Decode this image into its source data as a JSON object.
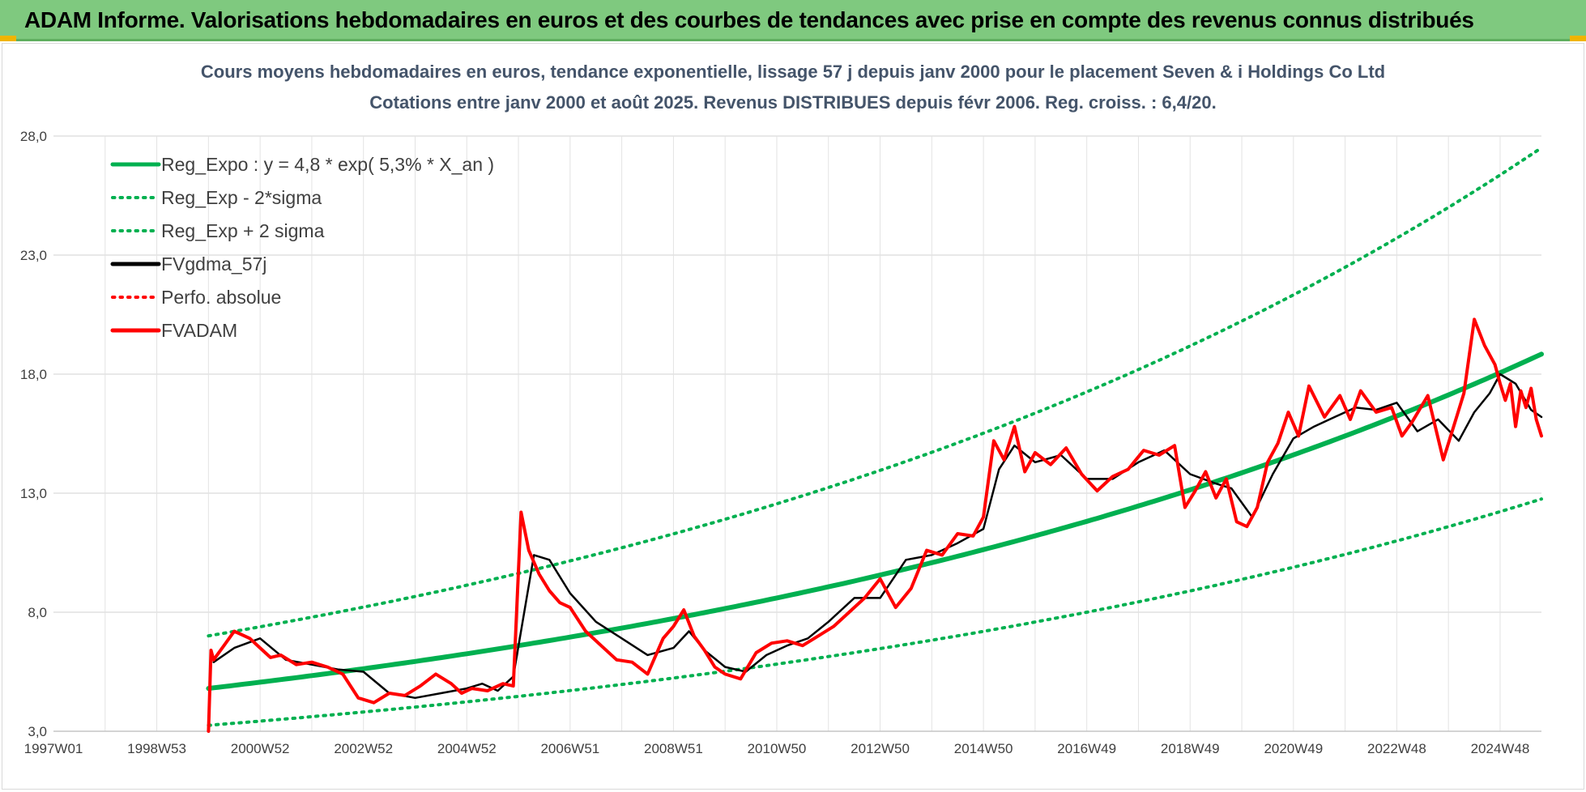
{
  "banner": {
    "title": "ADAM Informe. Valorisations hebdomadaires en euros et des courbes de tendances avec prise en compte des revenus connus distribués",
    "background": "#7fc97f"
  },
  "chart_data": {
    "type": "line",
    "title": "Cours moyens hebdomadaires en euros, tendance exponentielle, lissage 57 j depuis janv 2000  pour le placement Seven & i Holdings Co Ltd",
    "subtitle": "Cotations entre janv 2000 et août 2025.  Revenus DISTRIBUES depuis févr 2006.  Reg. croiss. : 6,4/20.",
    "xlabel": "",
    "ylabel": "",
    "x_range": [
      1997.0,
      2025.8
    ],
    "ylim": [
      3.0,
      28.0
    ],
    "y_ticks": [
      "3,0",
      "8,0",
      "13,0",
      "18,0",
      "23,0",
      "28,0"
    ],
    "x_ticks": [
      {
        "label": "1997W01",
        "x": 1997.0
      },
      {
        "label": "1998W53",
        "x": 1999.0
      },
      {
        "label": "2000W52",
        "x": 2001.0
      },
      {
        "label": "2002W52",
        "x": 2003.0
      },
      {
        "label": "2004W52",
        "x": 2005.0
      },
      {
        "label": "2006W51",
        "x": 2007.0
      },
      {
        "label": "2008W51",
        "x": 2009.0
      },
      {
        "label": "2010W50",
        "x": 2011.0
      },
      {
        "label": "2012W50",
        "x": 2013.0
      },
      {
        "label": "2014W50",
        "x": 2015.0
      },
      {
        "label": "2016W49",
        "x": 2017.0
      },
      {
        "label": "2018W49",
        "x": 2019.0
      },
      {
        "label": "2020W49",
        "x": 2021.0
      },
      {
        "label": "2022W48",
        "x": 2023.0
      },
      {
        "label": "2024W48",
        "x": 2025.0
      }
    ],
    "grid": true,
    "legend_position": "top-left",
    "series": [
      {
        "name": "Reg_Expo : y = 4,8 * exp( 5,3% *  X_an )",
        "color": "#00b050",
        "style": "solid",
        "kind": "expo",
        "a": 4.8,
        "b": 0.053,
        "factor": 1.0,
        "x_start": 2000.0,
        "x_end": 2025.8
      },
      {
        "name": "Reg_Exp - 2*sigma",
        "color": "#00b050",
        "style": "dotted",
        "kind": "expo",
        "a": 4.8,
        "b": 0.053,
        "factor": 0.677,
        "x_start": 2000.0,
        "x_end": 2025.8
      },
      {
        "name": "Reg_Exp + 2 sigma",
        "color": "#00b050",
        "style": "dotted",
        "kind": "expo",
        "a": 4.8,
        "b": 0.053,
        "factor": 1.46,
        "x_start": 2000.0,
        "x_end": 2025.8
      },
      {
        "name": "FVgdma_57j",
        "color": "#000000",
        "style": "solid",
        "kind": "data",
        "x": [
          2000.1,
          2000.5,
          2001.0,
          2001.5,
          2002.0,
          2002.5,
          2003.0,
          2003.5,
          2004.0,
          2004.5,
          2005.0,
          2005.3,
          2005.6,
          2005.9,
          2006.3,
          2006.6,
          2007.0,
          2007.5,
          2008.0,
          2008.5,
          2009.0,
          2009.3,
          2009.6,
          2010.0,
          2010.4,
          2010.8,
          2011.2,
          2011.6,
          2012.0,
          2012.5,
          2013.0,
          2013.5,
          2014.0,
          2014.5,
          2015.0,
          2015.3,
          2015.6,
          2016.0,
          2016.5,
          2017.0,
          2017.5,
          2018.0,
          2018.5,
          2019.0,
          2019.5,
          2019.8,
          2020.2,
          2020.6,
          2021.0,
          2021.4,
          2021.8,
          2022.2,
          2022.6,
          2023.0,
          2023.4,
          2023.8,
          2024.2,
          2024.5,
          2024.8,
          2025.0,
          2025.3,
          2025.6,
          2025.8
        ],
        "y": [
          5.9,
          6.5,
          6.9,
          6.0,
          5.8,
          5.6,
          5.5,
          4.6,
          4.4,
          4.6,
          4.8,
          5.0,
          4.7,
          5.3,
          10.4,
          10.2,
          8.8,
          7.6,
          6.9,
          6.2,
          6.5,
          7.2,
          6.4,
          5.7,
          5.5,
          6.2,
          6.6,
          6.9,
          7.6,
          8.6,
          8.6,
          10.2,
          10.4,
          10.9,
          11.5,
          14.0,
          15.0,
          14.3,
          14.6,
          13.6,
          13.6,
          14.3,
          14.8,
          13.8,
          13.4,
          13.2,
          12.0,
          13.8,
          15.3,
          15.8,
          16.2,
          16.6,
          16.5,
          16.8,
          15.6,
          16.1,
          15.2,
          16.4,
          17.2,
          18.0,
          17.6,
          16.5,
          16.2
        ]
      },
      {
        "name": "Perfo. absolue",
        "color": "#ff0000",
        "style": "dotted",
        "kind": "none"
      },
      {
        "name": "FVADAM",
        "color": "#ff0000",
        "style": "solid",
        "kind": "data",
        "x": [
          2000.0,
          2000.05,
          2000.1,
          2000.3,
          2000.5,
          2000.8,
          2001.0,
          2001.2,
          2001.4,
          2001.7,
          2002.0,
          2002.3,
          2002.6,
          2002.9,
          2003.2,
          2003.5,
          2003.8,
          2004.1,
          2004.4,
          2004.7,
          2004.9,
          2005.1,
          2005.4,
          2005.7,
          2005.9,
          2006.05,
          2006.2,
          2006.4,
          2006.6,
          2006.8,
          2007.0,
          2007.3,
          2007.6,
          2007.9,
          2008.2,
          2008.5,
          2008.8,
          2009.0,
          2009.2,
          2009.4,
          2009.6,
          2009.8,
          2010.0,
          2010.3,
          2010.6,
          2010.9,
          2011.2,
          2011.5,
          2011.8,
          2012.1,
          2012.4,
          2012.7,
          2013.0,
          2013.3,
          2013.6,
          2013.9,
          2014.2,
          2014.5,
          2014.8,
          2015.0,
          2015.2,
          2015.4,
          2015.6,
          2015.8,
          2016.0,
          2016.3,
          2016.6,
          2016.9,
          2017.2,
          2017.5,
          2017.8,
          2018.1,
          2018.4,
          2018.7,
          2018.9,
          2019.1,
          2019.3,
          2019.5,
          2019.7,
          2019.9,
          2020.1,
          2020.3,
          2020.5,
          2020.7,
          2020.9,
          2021.1,
          2021.3,
          2021.6,
          2021.9,
          2022.1,
          2022.3,
          2022.6,
          2022.9,
          2023.1,
          2023.3,
          2023.6,
          2023.9,
          2024.1,
          2024.3,
          2024.5,
          2024.7,
          2024.9,
          2025.0,
          2025.1,
          2025.2,
          2025.3,
          2025.4,
          2025.5,
          2025.6,
          2025.7,
          2025.8
        ],
        "y": [
          3.0,
          6.4,
          6.0,
          6.6,
          7.2,
          6.9,
          6.5,
          6.1,
          6.2,
          5.8,
          5.9,
          5.7,
          5.4,
          4.4,
          4.2,
          4.6,
          4.5,
          4.9,
          5.4,
          5.0,
          4.6,
          4.8,
          4.7,
          5.0,
          4.9,
          12.2,
          10.6,
          9.6,
          8.9,
          8.4,
          8.2,
          7.2,
          6.6,
          6.0,
          5.9,
          5.4,
          6.9,
          7.4,
          8.1,
          7.0,
          6.4,
          5.7,
          5.4,
          5.2,
          6.3,
          6.7,
          6.8,
          6.6,
          7.0,
          7.4,
          8.0,
          8.6,
          9.4,
          8.2,
          9.0,
          10.6,
          10.4,
          11.3,
          11.2,
          12.0,
          15.2,
          14.4,
          15.8,
          13.9,
          14.7,
          14.2,
          14.9,
          13.8,
          13.1,
          13.7,
          14.0,
          14.8,
          14.6,
          15.0,
          12.4,
          13.1,
          13.9,
          12.8,
          13.6,
          11.8,
          11.6,
          12.4,
          14.3,
          15.1,
          16.4,
          15.4,
          17.5,
          16.2,
          17.1,
          16.1,
          17.3,
          16.4,
          16.6,
          15.4,
          16.0,
          17.1,
          14.4,
          15.8,
          17.2,
          20.3,
          19.2,
          18.4,
          17.6,
          16.9,
          17.6,
          15.8,
          17.3,
          16.6,
          17.4,
          16.1,
          15.4
        ]
      }
    ]
  }
}
